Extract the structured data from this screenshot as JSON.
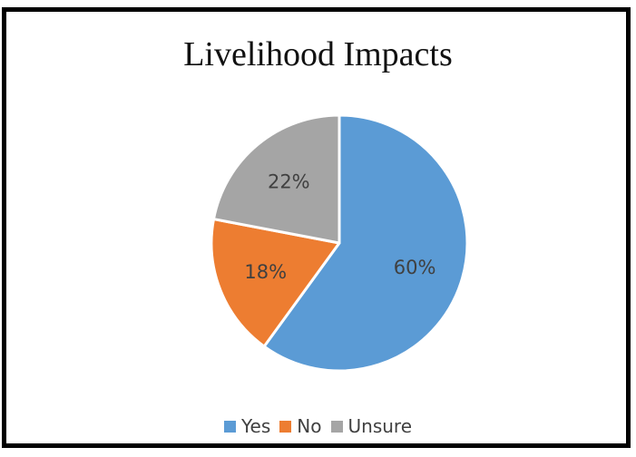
{
  "chart_data": {
    "type": "pie",
    "title": "Livelihood Impacts",
    "categories": [
      "Yes",
      "No",
      "Unsure"
    ],
    "values": [
      60,
      18,
      22
    ],
    "labels": [
      "60%",
      "18%",
      "22%"
    ],
    "colors": [
      "#5b9bd5",
      "#ed7d31",
      "#a5a5a5"
    ],
    "start_angle_deg": 0,
    "direction": "clockwise",
    "legend_position": "bottom"
  }
}
